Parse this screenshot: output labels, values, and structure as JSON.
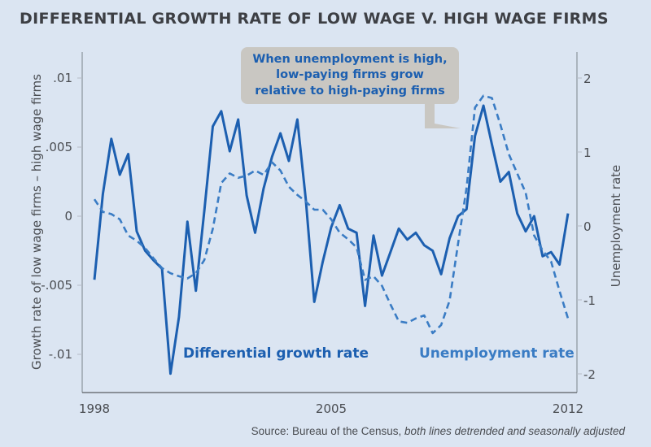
{
  "chart_data": {
    "type": "line",
    "title": "DIFFERENTIAL GROWTH RATE OF LOW WAGE V. HIGH WAGE FIRMS",
    "xlabel": "",
    "ylabel": "Growth rate of low wage firms – high wage firms",
    "y2label": "Unemployment rate",
    "x_ticks": [
      "1998",
      "2005",
      "2012"
    ],
    "xlim": [
      1998,
      2012
    ],
    "y_ticks": [
      ".01",
      ".005",
      "0",
      "-.005",
      "-.01"
    ],
    "y_tick_values": [
      0.01,
      0.005,
      0,
      -0.005,
      -0.01
    ],
    "ylim": [
      -0.0128,
      0.0118
    ],
    "y2_ticks": [
      "2",
      "1",
      "0",
      "-1",
      "-2"
    ],
    "y2_tick_values": [
      2,
      1,
      0,
      -1,
      -2
    ],
    "y2lim": [
      -2.3,
      2.35
    ],
    "grid": false,
    "x": [
      1998.0,
      1998.25,
      1998.5,
      1998.75,
      1999.0,
      1999.25,
      1999.5,
      1999.75,
      2000.0,
      2000.25,
      2000.5,
      2000.75,
      2001.0,
      2001.25,
      2001.5,
      2001.75,
      2002.0,
      2002.25,
      2002.5,
      2002.75,
      2003.0,
      2003.25,
      2003.5,
      2003.75,
      2004.0,
      2004.25,
      2004.5,
      2004.75,
      2005.0,
      2005.25,
      2005.5,
      2005.75,
      2006.0,
      2006.25,
      2006.5,
      2006.75,
      2007.0,
      2007.25,
      2007.5,
      2007.75,
      2008.0,
      2008.25,
      2008.5,
      2008.75,
      2009.0,
      2009.25,
      2009.5,
      2009.75,
      2010.0,
      2010.25,
      2010.5,
      2010.75,
      2011.0,
      2011.25,
      2011.5,
      2011.75,
      2012.0
    ],
    "series": [
      {
        "name": "Differential growth rate",
        "axis": "left",
        "style": "solid",
        "color": "#1c5fb0",
        "values": [
          -0.0046,
          0.0016,
          0.0056,
          0.003,
          0.0045,
          -0.0011,
          -0.0025,
          -0.0032,
          -0.0038,
          -0.0114,
          -0.0073,
          -0.0004,
          -0.0054,
          0.0004,
          0.0065,
          0.0076,
          0.0047,
          0.007,
          0.0015,
          -0.0012,
          0.002,
          0.0043,
          0.006,
          0.004,
          0.007,
          0.0012,
          -0.0062,
          -0.0033,
          -0.0008,
          0.0008,
          -0.0009,
          -0.0012,
          -0.0065,
          -0.0014,
          -0.0043,
          -0.0026,
          -0.0009,
          -0.0017,
          -0.0012,
          -0.0021,
          -0.0025,
          -0.0042,
          -0.0016,
          0.0,
          0.0005,
          0.0058,
          0.008,
          0.0052,
          0.0025,
          0.0032,
          0.0002,
          -0.0011,
          0.0,
          -0.0029,
          -0.0026,
          -0.0035,
          0.0002
        ]
      },
      {
        "name": "Unemployment rate",
        "axis": "right",
        "style": "dashed",
        "color": "#3a7cc4",
        "values": [
          0.36,
          0.19,
          0.16,
          0.09,
          -0.13,
          -0.2,
          -0.3,
          -0.44,
          -0.57,
          -0.64,
          -0.68,
          -0.71,
          -0.64,
          -0.46,
          -0.04,
          0.58,
          0.71,
          0.65,
          0.68,
          0.75,
          0.69,
          0.86,
          0.75,
          0.53,
          0.42,
          0.33,
          0.22,
          0.22,
          0.09,
          -0.09,
          -0.18,
          -0.29,
          -0.73,
          -0.68,
          -0.81,
          -1.06,
          -1.29,
          -1.31,
          -1.25,
          -1.21,
          -1.45,
          -1.34,
          -1.01,
          -0.24,
          0.51,
          1.6,
          1.76,
          1.73,
          1.37,
          0.97,
          0.71,
          0.45,
          -0.13,
          -0.33,
          -0.48,
          -0.88,
          -1.25
        ]
      }
    ],
    "annotations": [
      {
        "text": "Differential growth rate",
        "series": 0,
        "placement": "bottom-left"
      },
      {
        "text": "Unemployment rate",
        "series": 1,
        "placement": "bottom-right"
      }
    ]
  },
  "callout": {
    "lines": [
      "When unemployment is high,",
      "low-paying firms grow",
      "relative to high-paying firms"
    ]
  },
  "source": {
    "prefix": "Source: Bureau of the Census, ",
    "italic": "both lines detrended and seasonally adjusted"
  },
  "colors": {
    "background": "#dbe5f2",
    "solid_line": "#1c5fb0",
    "dashed_line": "#3a7cc4",
    "callout_bg": "#c9c7c2",
    "text": "#4a4d52"
  }
}
